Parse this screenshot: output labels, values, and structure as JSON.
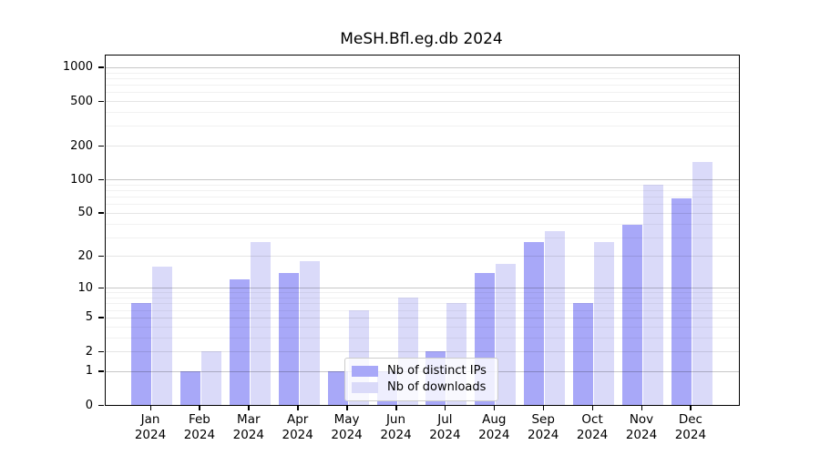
{
  "title": "MeSH.Bfl.eg.db 2024",
  "legend": {
    "items": [
      {
        "label": "Nb of distinct IPs",
        "key": "ips"
      },
      {
        "label": "Nb of downloads",
        "key": "downloads"
      }
    ]
  },
  "colors": {
    "ips": "#a8a8f8",
    "downloads": "#dadaf9",
    "axis": "#000000"
  },
  "chart_data": {
    "type": "bar",
    "title": "MeSH.Bfl.eg.db 2024",
    "categories": [
      "Jan 2024",
      "Feb 2024",
      "Mar 2024",
      "Apr 2024",
      "May 2024",
      "Jun 2024",
      "Jul 2024",
      "Aug 2024",
      "Sep 2024",
      "Oct 2024",
      "Nov 2024",
      "Dec 2024"
    ],
    "x_tick_months": [
      "Jan",
      "Feb",
      "Mar",
      "Apr",
      "May",
      "Jun",
      "Jul",
      "Aug",
      "Sep",
      "Oct",
      "Nov",
      "Dec"
    ],
    "x_tick_year": "2024",
    "series": [
      {
        "name": "Nb of distinct IPs",
        "color": "#a8a8f8",
        "values": [
          7,
          1,
          12,
          14,
          1,
          1,
          2,
          14,
          27,
          7,
          39,
          67
        ]
      },
      {
        "name": "Nb of downloads",
        "color": "#dadaf9",
        "values": [
          16,
          2,
          27,
          18,
          6,
          8,
          7,
          17,
          34,
          27,
          90,
          143
        ]
      }
    ],
    "y_scale": "log10(1+v)",
    "y_ticks": [
      0,
      1,
      2,
      5,
      10,
      20,
      50,
      100,
      200,
      500,
      1000
    ],
    "y_minor_gridlines": [
      3,
      4,
      6,
      7,
      8,
      9,
      30,
      40,
      60,
      70,
      80,
      90,
      300,
      400,
      600,
      700,
      800,
      900
    ],
    "ylim": [
      0,
      1270
    ],
    "grid": true,
    "legend_position": "lower center"
  }
}
